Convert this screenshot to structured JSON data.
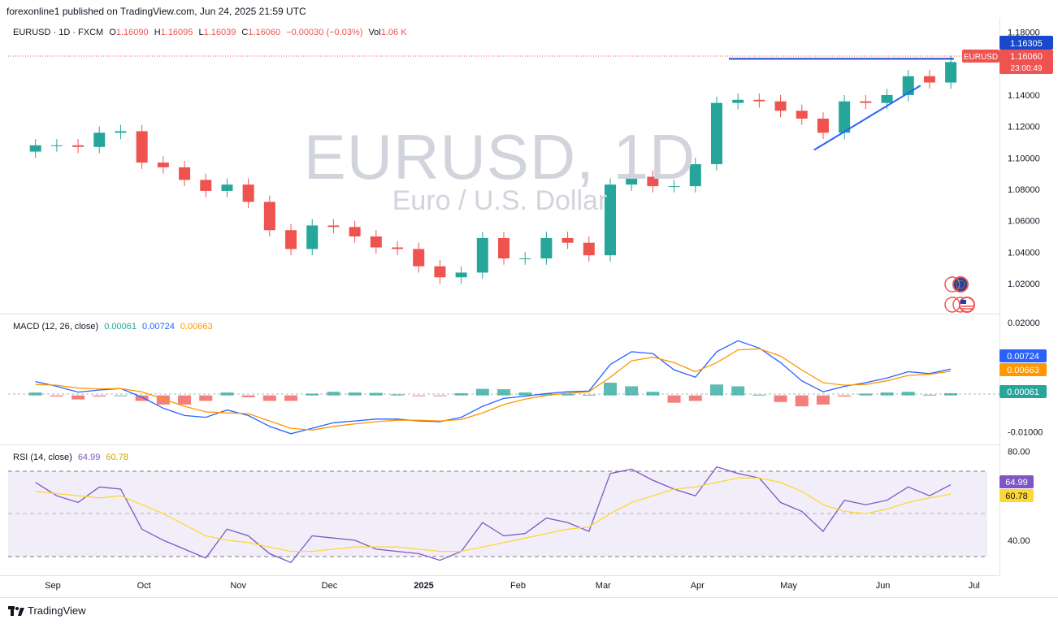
{
  "header": {
    "published": "forexonline1 published on TradingView.com, Jun 24, 2025 21:59 UTC"
  },
  "legend": {
    "symbol": "EURUSD · 1D · FXCM",
    "open_label": "O",
    "open": "1.16090",
    "high_label": "H",
    "high": "1.16095",
    "low_label": "L",
    "low": "1.16039",
    "close_label": "C",
    "close": "1.16060",
    "change": "−0.00030 (−0.03%)",
    "vol_label": "Vol",
    "vol": "1.06 K"
  },
  "watermark": {
    "title": "EURUSD, 1D",
    "subtitle": "Euro / U.S. Dollar"
  },
  "price_badges": {
    "symbol_badge": "EURUSD",
    "last_price": "1.16060",
    "countdown": "23:00:49",
    "resistance": "1.16305"
  },
  "macd": {
    "label": "MACD (12, 26, close)",
    "hist": "0.00061",
    "macd": "0.00724",
    "signal": "0.00663",
    "colors": {
      "macd": "#2962ff",
      "signal": "#ff9800",
      "hist_up": "#26a69a",
      "hist_down": "#ef5350"
    }
  },
  "rsi": {
    "label": "RSI (14, close)",
    "value": "64.99",
    "ma": "60.78",
    "colors": {
      "rsi": "#7e57c2",
      "ma": "#fdd835",
      "band": "#7e57c2"
    }
  },
  "footer": {
    "brand": "TradingView"
  },
  "chart_data": [
    {
      "type": "candlestick",
      "title": "EURUSD, 1D",
      "subtitle": "Euro / U.S. Dollar",
      "x_ticks": [
        "Sep",
        "Oct",
        "Nov",
        "Dec",
        "2025",
        "Feb",
        "Mar",
        "Apr",
        "May",
        "Jun",
        "Jul"
      ],
      "y_ticks": [
        "1.18000",
        "1.16000",
        "1.14000",
        "1.12000",
        "1.10000",
        "1.08000",
        "1.06000",
        "1.04000",
        "1.02000"
      ],
      "ylim": [
        1.005,
        1.185
      ],
      "x": [
        "2024-08-26",
        "2024-09-02",
        "2024-09-09",
        "2024-09-16",
        "2024-09-23",
        "2024-09-30",
        "2024-10-07",
        "2024-10-14",
        "2024-10-21",
        "2024-10-28",
        "2024-11-04",
        "2024-11-11",
        "2024-11-18",
        "2024-11-25",
        "2024-12-02",
        "2024-12-09",
        "2024-12-16",
        "2024-12-23",
        "2024-12-30",
        "2025-01-06",
        "2025-01-13",
        "2025-01-20",
        "2025-01-27",
        "2025-02-03",
        "2025-02-10",
        "2025-02-17",
        "2025-02-24",
        "2025-03-03",
        "2025-03-10",
        "2025-03-17",
        "2025-03-24",
        "2025-03-31",
        "2025-04-07",
        "2025-04-14",
        "2025-04-21",
        "2025-04-28",
        "2025-05-05",
        "2025-05-12",
        "2025-05-19",
        "2025-05-26",
        "2025-06-02",
        "2025-06-09",
        "2025-06-16",
        "2025-06-23"
      ],
      "close": [
        1.108,
        1.108,
        1.107,
        1.116,
        1.117,
        1.097,
        1.094,
        1.086,
        1.079,
        1.083,
        1.072,
        1.054,
        1.042,
        1.057,
        1.056,
        1.05,
        1.043,
        1.042,
        1.031,
        1.024,
        1.027,
        1.049,
        1.036,
        1.036,
        1.049,
        1.046,
        1.038,
        1.083,
        1.088,
        1.082,
        1.082,
        1.096,
        1.135,
        1.137,
        1.136,
        1.13,
        1.125,
        1.116,
        1.136,
        1.135,
        1.14,
        1.152,
        1.148,
        1.161
      ],
      "annotations": [
        {
          "type": "horizontal_resistance",
          "value": 1.16305,
          "from": "2025-04-14",
          "to": "2025-06-23"
        },
        {
          "type": "ascending_trendline",
          "from": [
            "2025-05-12",
            1.105
          ],
          "to": [
            "2025-06-16",
            1.146
          ]
        }
      ]
    },
    {
      "type": "line",
      "title": "MACD (12, 26, close)",
      "y_ticks": [
        "0.02000",
        "-0.01000"
      ],
      "ylim": [
        -0.013,
        0.022
      ],
      "series": [
        {
          "name": "MACD",
          "values": [
            0.0038,
            0.0025,
            0.0009,
            0.0015,
            0.0019,
            -0.0005,
            -0.0035,
            -0.0055,
            -0.006,
            -0.004,
            -0.0055,
            -0.0085,
            -0.0105,
            -0.009,
            -0.0075,
            -0.007,
            -0.0065,
            -0.0065,
            -0.007,
            -0.0072,
            -0.006,
            -0.003,
            -0.0008,
            -0.0002,
            0.0005,
            0.001,
            0.0012,
            0.0085,
            0.012,
            0.0115,
            0.007,
            0.005,
            0.012,
            0.015,
            0.013,
            0.009,
            0.004,
            0.001,
            0.0025,
            0.0035,
            0.0048,
            0.0065,
            0.006,
            0.00724
          ]
        },
        {
          "name": "Signal",
          "values": [
            0.003,
            0.0028,
            0.002,
            0.0018,
            0.0019,
            0.001,
            -0.001,
            -0.003,
            -0.0045,
            -0.0048,
            -0.005,
            -0.007,
            -0.009,
            -0.0095,
            -0.0085,
            -0.0078,
            -0.0072,
            -0.0068,
            -0.0068,
            -0.007,
            -0.0066,
            -0.0048,
            -0.0025,
            -0.001,
            0.0,
            0.0006,
            0.001,
            0.005,
            0.0095,
            0.0105,
            0.009,
            0.0065,
            0.009,
            0.0125,
            0.0128,
            0.0108,
            0.007,
            0.0035,
            0.0028,
            0.003,
            0.004,
            0.0055,
            0.0058,
            0.00663
          ]
        }
      ]
    },
    {
      "type": "line",
      "title": "RSI (14, close)",
      "y_ticks": [
        "80.00",
        "40.00"
      ],
      "ylim": [
        25,
        82
      ],
      "bands": [
        70,
        50,
        30
      ],
      "series": [
        {
          "name": "RSI",
          "values": [
            66,
            60,
            57,
            64,
            63,
            45,
            40,
            36,
            32,
            45,
            42,
            34,
            30,
            42,
            41,
            40,
            36,
            35,
            34,
            31,
            35,
            48,
            42,
            43,
            50,
            48,
            44,
            70,
            72,
            67,
            63,
            60,
            73,
            70,
            68,
            57,
            53,
            44,
            58,
            56,
            58,
            64,
            60,
            64.99
          ]
        },
        {
          "name": "RSI-based MA",
          "values": [
            62,
            61,
            60,
            59,
            60,
            56,
            52,
            47,
            42,
            40,
            39,
            37,
            35,
            35,
            36,
            37,
            37,
            37,
            36,
            35,
            35,
            37,
            39,
            41,
            43,
            45,
            46,
            52,
            57,
            60,
            63,
            64,
            66,
            68,
            68,
            66,
            62,
            56,
            53,
            52,
            54,
            57,
            59,
            60.78
          ]
        }
      ]
    }
  ]
}
